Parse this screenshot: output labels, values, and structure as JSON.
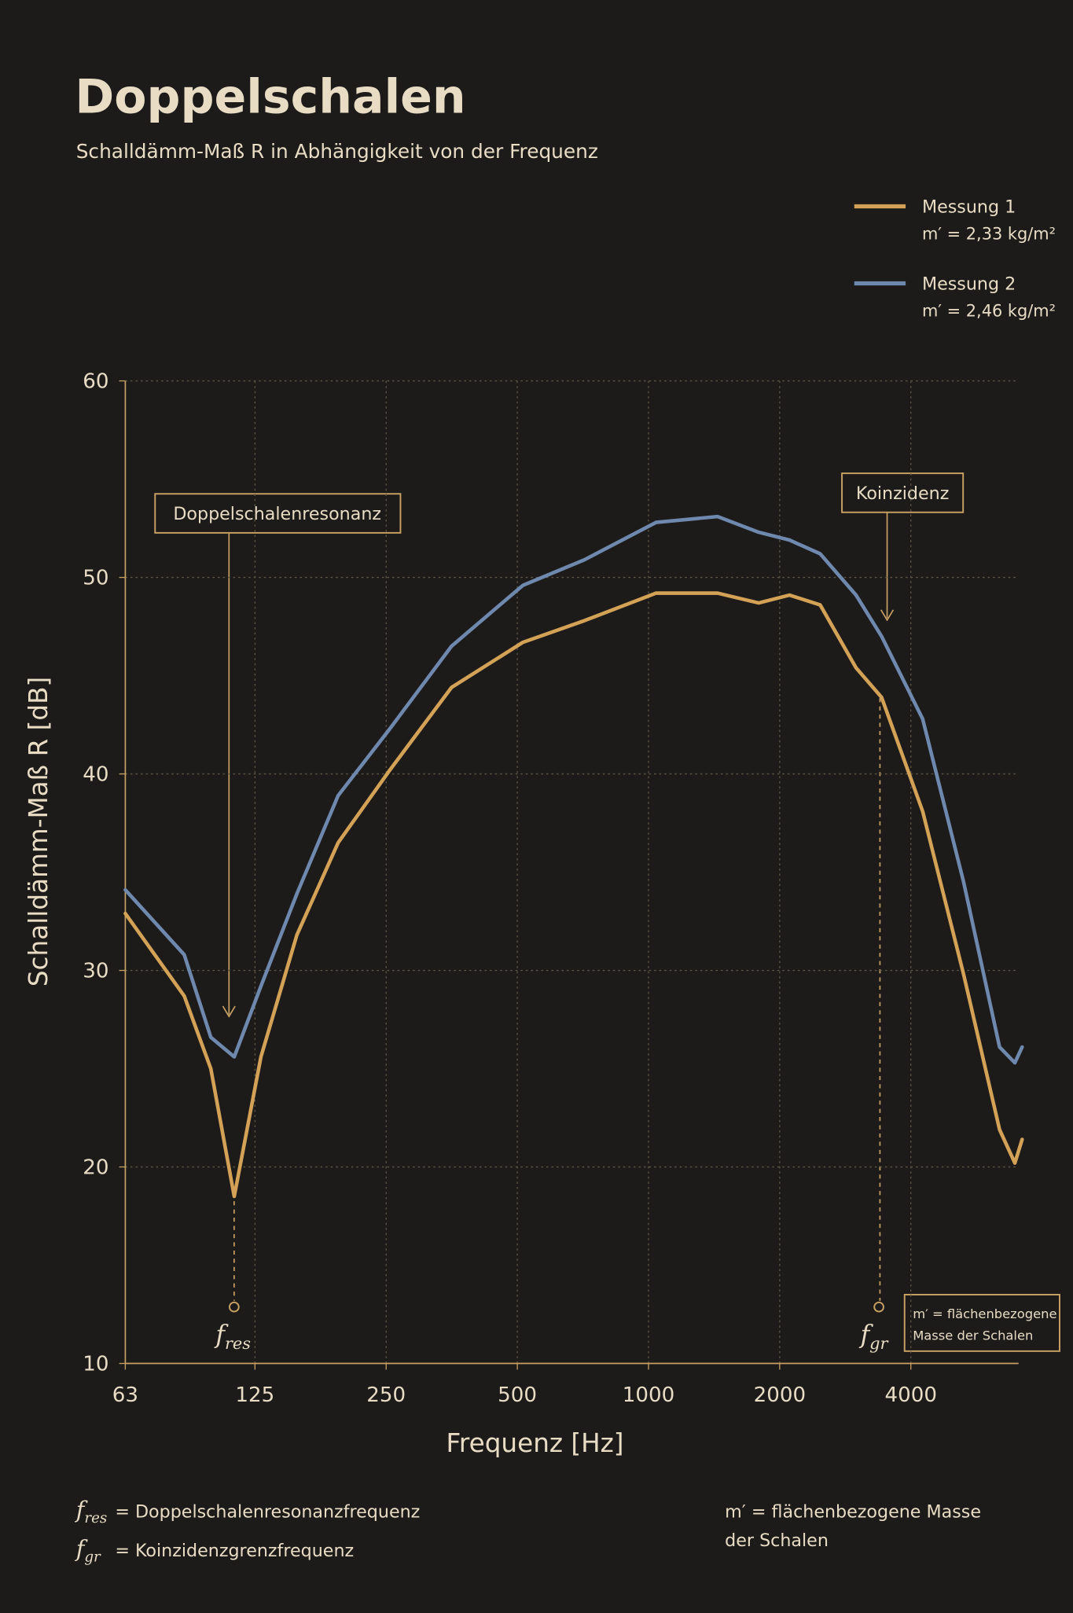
{
  "chart_data": {
    "type": "line",
    "title": "Doppelschalen",
    "subtitle": "Schalldämm-Maß R in Abhängigkeit von der Frequenz",
    "x_label": "Frequenz [Hz]",
    "y_label": "Schalldämm-Maß R [dB]",
    "x": [
      63,
      86,
      99,
      112,
      129,
      156,
      194,
      255,
      353,
      515,
      713,
      1041,
      1441,
      1790,
      2106,
      2477,
      2993,
      3427,
      4258,
      5285,
      6390,
      6930,
      7200
    ],
    "series": [
      {
        "name": "Messung 1",
        "note": "m′ = 2,33 kg/m²",
        "color": "#d4a256",
        "values": [
          32.9,
          28.7,
          25.0,
          18.5,
          25.6,
          31.8,
          36.5,
          40.2,
          44.4,
          46.7,
          47.8,
          49.2,
          49.2,
          48.7,
          49.1,
          48.6,
          45.4,
          43.9,
          38.1,
          29.8,
          21.9,
          20.2,
          21.4
        ]
      },
      {
        "name": "Messung 2",
        "note": "m′ = 2,46 kg/m²",
        "color": "#6f88ad",
        "values": [
          34.1,
          30.8,
          26.6,
          25.6,
          29.2,
          33.9,
          38.9,
          42.3,
          46.5,
          49.6,
          50.9,
          52.8,
          53.1,
          52.3,
          51.9,
          51.2,
          49.1,
          47.0,
          42.8,
          34.5,
          26.1,
          25.3,
          26.1
        ]
      }
    ],
    "log_x": true,
    "xlim": [
      63,
      7300
    ],
    "xticks": [
      63,
      125,
      250,
      500,
      1000,
      2000,
      4000
    ],
    "ylim": [
      10,
      60
    ],
    "yticks": [
      10,
      20,
      30,
      40,
      50,
      60
    ],
    "grid": true,
    "legend": "top-right",
    "annotations": {
      "resonance": "Doppelschalenresonanz",
      "coincidence": "Koinzidenz",
      "f_res": {
        "symbol": "f",
        "sub": "res"
      },
      "f_gr": {
        "symbol": "f",
        "sub": "gr"
      },
      "mass_box": [
        "m′ = flächenbezogene",
        "Masse der Schalen"
      ]
    },
    "footnotes": [
      {
        "symbol": "f",
        "sub": "res",
        "text": "=  Doppelschalenresonanzfrequenz"
      },
      {
        "symbol": "f",
        "sub": "gr",
        "text": "=  Koinzidenzgrenzfrequenz"
      }
    ],
    "mass_note": [
      "m′ = flächenbezogene Masse",
      "der Schalen"
    ]
  }
}
